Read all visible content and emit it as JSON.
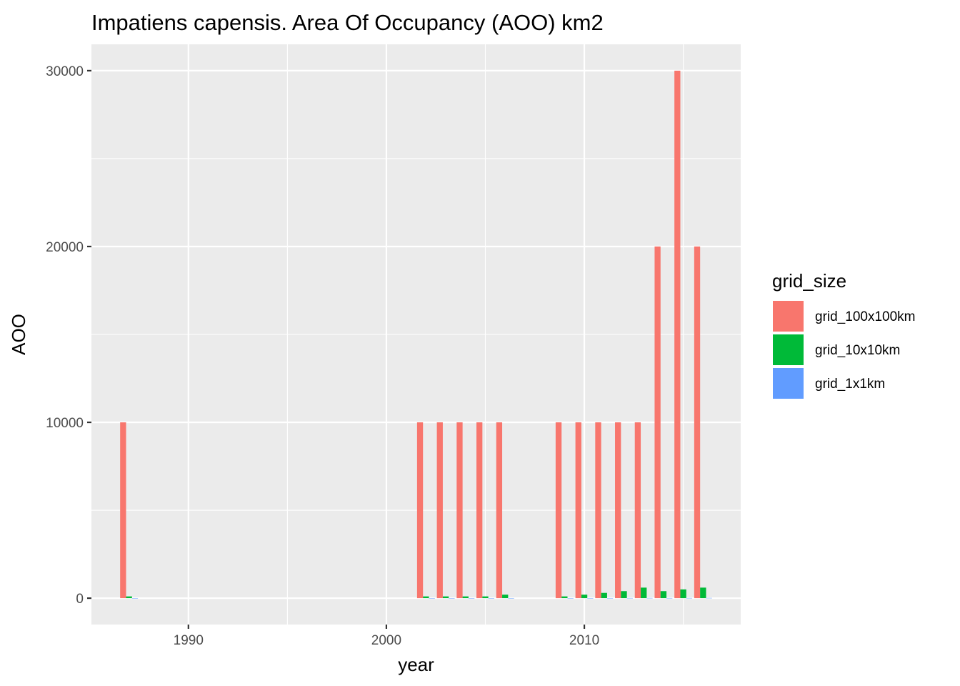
{
  "chart_data": {
    "type": "bar",
    "title": "Impatiens capensis. Area Of Occupancy (AOO) km2",
    "xlabel": "year",
    "ylabel": "AOO",
    "xlim": [
      1985.1,
      2017.9
    ],
    "ylim": [
      -1500,
      31500
    ],
    "x_ticks": [
      1990,
      2000,
      2010
    ],
    "x_minor": [
      1995,
      2005,
      2015
    ],
    "y_ticks": [
      0,
      10000,
      20000,
      30000
    ],
    "y_minor": [
      5000,
      15000,
      25000
    ],
    "grid": true,
    "legend": {
      "title": "grid_size",
      "position": "right"
    },
    "x": [
      1987,
      2002,
      2003,
      2004,
      2005,
      2006,
      2009,
      2010,
      2011,
      2012,
      2013,
      2014,
      2015,
      2016
    ],
    "series": [
      {
        "name": "grid_100x100km",
        "color": "#F8766D",
        "values": [
          10000,
          10000,
          10000,
          10000,
          10000,
          10000,
          10000,
          10000,
          10000,
          10000,
          10000,
          20000,
          30000,
          20000
        ]
      },
      {
        "name": "grid_10x10km",
        "color": "#00BA38",
        "values": [
          100,
          100,
          100,
          100,
          100,
          200,
          100,
          200,
          300,
          400,
          600,
          400,
          500,
          600
        ]
      },
      {
        "name": "grid_1x1km",
        "color": "#619CFF",
        "values": [
          1,
          2,
          2,
          2,
          3,
          4,
          3,
          4,
          5,
          8,
          10,
          7,
          9,
          12
        ]
      }
    ]
  }
}
